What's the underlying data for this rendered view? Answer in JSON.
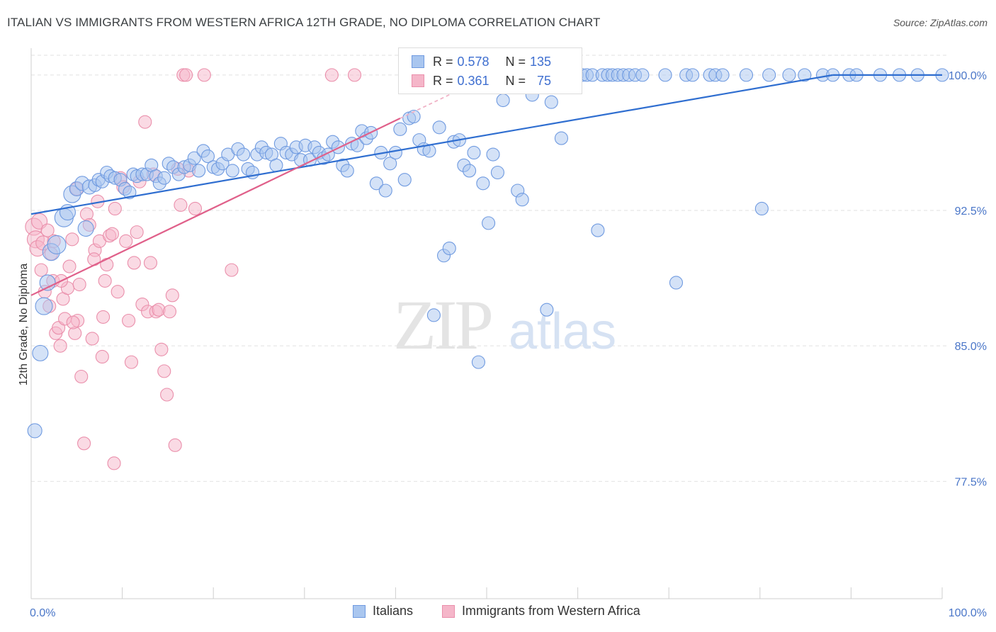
{
  "header": {
    "title": "ITALIAN VS IMMIGRANTS FROM WESTERN AFRICA 12TH GRADE, NO DIPLOMA CORRELATION CHART",
    "source": "Source: ZipAtlas.com"
  },
  "watermark": {
    "zip": "ZIP",
    "atlas": "atlas"
  },
  "legend": {
    "r_label": "R =",
    "n_label": "N =",
    "rows": [
      {
        "r": "0.578",
        "n": "135"
      },
      {
        "r": "0.361",
        "n": "75"
      }
    ]
  },
  "colors": {
    "blue_fill": "#a9c6ef",
    "blue_stroke": "#6f9ae0",
    "blue_line": "#2f6ed0",
    "pink_fill": "#f5b6c9",
    "pink_stroke": "#ea8fab",
    "pink_line": "#e0608a",
    "tick_text": "#4a76c8",
    "grid": "#e2e2e2"
  },
  "chart_data": {
    "type": "scatter",
    "title": "ITALIAN VS IMMIGRANTS FROM WESTERN AFRICA 12TH GRADE, NO DIPLOMA CORRELATION CHART",
    "xlabel": "",
    "ylabel": "12th Grade, No Diploma",
    "xlim": [
      0,
      100
    ],
    "ylim": [
      71,
      101.8
    ],
    "y_ticks": [
      77.5,
      85.0,
      92.5,
      100.0
    ],
    "y_tick_labels": [
      "77.5%",
      "85.0%",
      "92.5%",
      "100.0%"
    ],
    "x_tick_labels": [
      "0.0%",
      "100.0%"
    ],
    "grid": true,
    "legend_position": "top-center",
    "series": [
      {
        "name": "Italians",
        "trend": {
          "x": [
            0,
            88
          ],
          "y": [
            92.3,
            100.0
          ]
        },
        "points": [
          [
            0.4,
            80.3,
            10
          ],
          [
            1,
            84.6,
            11
          ],
          [
            1.4,
            87.2,
            12
          ],
          [
            1.8,
            88.5,
            11
          ],
          [
            2.2,
            90.2,
            12
          ],
          [
            2.8,
            90.6,
            13
          ],
          [
            3.6,
            92.1,
            13
          ],
          [
            4,
            92.4,
            11
          ],
          [
            4.5,
            93.4,
            12
          ],
          [
            5,
            93.7,
            10
          ],
          [
            5.6,
            94.0,
            10
          ],
          [
            6,
            91.5,
            11
          ],
          [
            6.4,
            93.8,
            10
          ],
          [
            7,
            93.9,
            9
          ],
          [
            7.4,
            94.2,
            9
          ],
          [
            7.8,
            94.1,
            9
          ],
          [
            8.3,
            94.6,
            9
          ],
          [
            8.7,
            94.4,
            9
          ],
          [
            9.2,
            94.3,
            9
          ],
          [
            9.8,
            94.2,
            9
          ],
          [
            10.3,
            93.7,
            9
          ],
          [
            10.8,
            93.5,
            9
          ],
          [
            11.2,
            94.5,
            9
          ],
          [
            11.6,
            94.4,
            9
          ],
          [
            12.2,
            94.5,
            9
          ],
          [
            12.7,
            94.5,
            9
          ],
          [
            13.2,
            95.0,
            9
          ],
          [
            13.7,
            94.4,
            9
          ],
          [
            14.1,
            94.0,
            9
          ],
          [
            14.6,
            94.3,
            9
          ],
          [
            15.1,
            95.1,
            9
          ],
          [
            15.6,
            94.9,
            9
          ],
          [
            16.2,
            94.5,
            9
          ],
          [
            16.8,
            94.9,
            9
          ],
          [
            17.4,
            95.0,
            9
          ],
          [
            17.9,
            95.4,
            9
          ],
          [
            18.4,
            94.7,
            9
          ],
          [
            18.9,
            95.8,
            9
          ],
          [
            19.4,
            95.5,
            9
          ],
          [
            20,
            94.9,
            9
          ],
          [
            20.5,
            94.8,
            9
          ],
          [
            21,
            95.1,
            9
          ],
          [
            21.6,
            95.6,
            9
          ],
          [
            22.1,
            94.7,
            9
          ],
          [
            22.7,
            95.9,
            9
          ],
          [
            23.3,
            95.6,
            9
          ],
          [
            23.8,
            94.8,
            9
          ],
          [
            24.3,
            94.6,
            9
          ],
          [
            24.8,
            95.6,
            9
          ],
          [
            25.3,
            96.0,
            9
          ],
          [
            25.8,
            95.7,
            9
          ],
          [
            26.4,
            95.6,
            9
          ],
          [
            26.9,
            95.0,
            9
          ],
          [
            27.4,
            96.2,
            9
          ],
          [
            28,
            95.7,
            9
          ],
          [
            28.6,
            95.6,
            9
          ],
          [
            29.1,
            96.0,
            9
          ],
          [
            29.6,
            95.3,
            9
          ],
          [
            30.1,
            96.1,
            9
          ],
          [
            30.6,
            95.3,
            9
          ],
          [
            31.1,
            96.0,
            9
          ],
          [
            31.6,
            95.7,
            9
          ],
          [
            32.1,
            95.4,
            9
          ],
          [
            32.6,
            95.6,
            9
          ],
          [
            33.1,
            96.3,
            9
          ],
          [
            33.7,
            96.0,
            9
          ],
          [
            34.2,
            95.0,
            9
          ],
          [
            34.7,
            94.7,
            9
          ],
          [
            35.2,
            96.2,
            9
          ],
          [
            35.8,
            96.1,
            9
          ],
          [
            36.3,
            96.9,
            9
          ],
          [
            36.8,
            96.5,
            9
          ],
          [
            37.3,
            96.8,
            9
          ],
          [
            37.9,
            94.0,
            9
          ],
          [
            38.4,
            95.7,
            9
          ],
          [
            38.9,
            93.6,
            9
          ],
          [
            39.4,
            95.1,
            9
          ],
          [
            40,
            95.7,
            9
          ],
          [
            40.5,
            97.0,
            9
          ],
          [
            41,
            94.2,
            9
          ],
          [
            41.5,
            97.6,
            9
          ],
          [
            42,
            97.7,
            9
          ],
          [
            42.6,
            96.4,
            9
          ],
          [
            43.1,
            95.9,
            9
          ],
          [
            43.7,
            95.8,
            9
          ],
          [
            44.2,
            86.7,
            9
          ],
          [
            44.8,
            97.1,
            9
          ],
          [
            45.3,
            90.0,
            9
          ],
          [
            45.9,
            90.4,
            9
          ],
          [
            46.4,
            96.3,
            9
          ],
          [
            47,
            96.4,
            9
          ],
          [
            47.5,
            95.0,
            9
          ],
          [
            48.1,
            94.7,
            9
          ],
          [
            48.6,
            95.7,
            9
          ],
          [
            49.1,
            84.1,
            9
          ],
          [
            49.6,
            94.0,
            9
          ],
          [
            50.2,
            91.8,
            9
          ],
          [
            50.7,
            95.6,
            9
          ],
          [
            51.2,
            94.6,
            9
          ],
          [
            51.8,
            98.6,
            9
          ],
          [
            52.3,
            100.0,
            9
          ],
          [
            52.9,
            100.0,
            9
          ],
          [
            53.4,
            93.6,
            9
          ],
          [
            53.9,
            93.1,
            9
          ],
          [
            54.5,
            100.0,
            9
          ],
          [
            55,
            98.9,
            9
          ],
          [
            55.6,
            100.0,
            9
          ],
          [
            56.1,
            100.0,
            9
          ],
          [
            56.6,
            87.0,
            9
          ],
          [
            57.1,
            98.5,
            9
          ],
          [
            57.7,
            100.0,
            9
          ],
          [
            58.2,
            96.5,
            9
          ],
          [
            58.8,
            100.0,
            9
          ],
          [
            59.4,
            100.0,
            9
          ],
          [
            59.9,
            100.0,
            9
          ],
          [
            60.5,
            100.0,
            9
          ],
          [
            61,
            100.0,
            9
          ],
          [
            61.6,
            100.0,
            9
          ],
          [
            62.2,
            91.4,
            9
          ],
          [
            62.7,
            100.0,
            9
          ],
          [
            63.3,
            100.0,
            9
          ],
          [
            63.8,
            100.0,
            9
          ],
          [
            64.4,
            100.0,
            9
          ],
          [
            65,
            100.0,
            9
          ],
          [
            65.6,
            100.0,
            9
          ],
          [
            66.3,
            100.0,
            9
          ],
          [
            67.1,
            100.0,
            9
          ],
          [
            69.6,
            100.0,
            9
          ],
          [
            70.8,
            88.5,
            9
          ],
          [
            71.9,
            100.0,
            9
          ],
          [
            72.6,
            100.0,
            9
          ],
          [
            74.5,
            100.0,
            9
          ],
          [
            75.1,
            100.0,
            9
          ],
          [
            75.9,
            100.0,
            9
          ],
          [
            78.5,
            100.0,
            9
          ],
          [
            80.2,
            92.6,
            9
          ],
          [
            81,
            100.0,
            9
          ],
          [
            83.2,
            100.0,
            9
          ],
          [
            84.9,
            100.0,
            9
          ],
          [
            86.9,
            100.0,
            9
          ],
          [
            88,
            100.0,
            9
          ],
          [
            89.8,
            100.0,
            9
          ],
          [
            90.6,
            100.0,
            9
          ],
          [
            93.2,
            100.0,
            9
          ],
          [
            95.3,
            100.0,
            9
          ],
          [
            97.3,
            100.0,
            9
          ],
          [
            100,
            100.0,
            9
          ]
        ]
      },
      {
        "name": "Immigrants from Western Africa",
        "trend": {
          "x": [
            0,
            40.5
          ],
          "y": [
            87.8,
            97.6
          ]
        },
        "points": [
          [
            0.3,
            91.6,
            12
          ],
          [
            0.5,
            90.9,
            12
          ],
          [
            0.7,
            90.4,
            11
          ],
          [
            0.9,
            91.9,
            11
          ],
          [
            1.1,
            89.2,
            9
          ],
          [
            1.3,
            90.7,
            10
          ],
          [
            1.5,
            88.0,
            9
          ],
          [
            1.8,
            91.4,
            9
          ],
          [
            2,
            87.2,
            9
          ],
          [
            2.2,
            90.1,
            9
          ],
          [
            2.4,
            88.6,
            9
          ],
          [
            2.7,
            85.7,
            9
          ],
          [
            3,
            86.0,
            9
          ],
          [
            3.2,
            85.0,
            9
          ],
          [
            3.5,
            87.6,
            9
          ],
          [
            3.7,
            86.5,
            9
          ],
          [
            4,
            88.2,
            9
          ],
          [
            4.2,
            89.4,
            9
          ],
          [
            4.5,
            90.9,
            9
          ],
          [
            4.8,
            85.7,
            9
          ],
          [
            5,
            93.7,
            9
          ],
          [
            5.3,
            88.4,
            9
          ],
          [
            5.5,
            83.3,
            9
          ],
          [
            5.8,
            79.6,
            9
          ],
          [
            6.1,
            92.3,
            9
          ],
          [
            6.4,
            91.7,
            9
          ],
          [
            6.7,
            85.4,
            9
          ],
          [
            7,
            90.3,
            9
          ],
          [
            7.3,
            93.0,
            9
          ],
          [
            7.5,
            90.8,
            9
          ],
          [
            7.8,
            84.4,
            9
          ],
          [
            8.1,
            88.6,
            9
          ],
          [
            8.3,
            89.5,
            9
          ],
          [
            8.6,
            91.1,
            9
          ],
          [
            8.9,
            91.2,
            9
          ],
          [
            9.2,
            92.6,
            9
          ],
          [
            9.5,
            88.0,
            9
          ],
          [
            9.8,
            94.3,
            9
          ],
          [
            10.1,
            93.8,
            9
          ],
          [
            10.4,
            90.8,
            9
          ],
          [
            10.7,
            86.4,
            9
          ],
          [
            11,
            84.1,
            9
          ],
          [
            11.3,
            89.6,
            9
          ],
          [
            11.6,
            91.3,
            9
          ],
          [
            11.9,
            94.1,
            9
          ],
          [
            12.2,
            87.3,
            9
          ],
          [
            12.5,
            97.4,
            9
          ],
          [
            12.8,
            86.9,
            9
          ],
          [
            13.1,
            89.6,
            9
          ],
          [
            13.4,
            94.5,
            9
          ],
          [
            13.7,
            86.9,
            9
          ],
          [
            14,
            87.0,
            9
          ],
          [
            14.3,
            84.8,
            9
          ],
          [
            14.6,
            83.6,
            9
          ],
          [
            14.9,
            82.3,
            9
          ],
          [
            15.2,
            86.9,
            9
          ],
          [
            15.5,
            87.8,
            9
          ],
          [
            15.8,
            79.5,
            9
          ],
          [
            16.1,
            94.8,
            9
          ],
          [
            16.4,
            92.8,
            9
          ],
          [
            16.7,
            100.0,
            9
          ],
          [
            17,
            100.0,
            9
          ],
          [
            17.3,
            94.7,
            9
          ],
          [
            18,
            92.6,
            9
          ],
          [
            19,
            100.0,
            9
          ],
          [
            22,
            89.2,
            9
          ],
          [
            33,
            100.0,
            9
          ],
          [
            35.5,
            100.0,
            9
          ],
          [
            9.1,
            78.5,
            9
          ],
          [
            5.1,
            86.4,
            9
          ],
          [
            3.3,
            88.6,
            9
          ],
          [
            2.5,
            90.8,
            9
          ],
          [
            7.9,
            86.6,
            9
          ],
          [
            6.9,
            89.8,
            9
          ],
          [
            4.6,
            86.3,
            9
          ]
        ]
      }
    ]
  }
}
